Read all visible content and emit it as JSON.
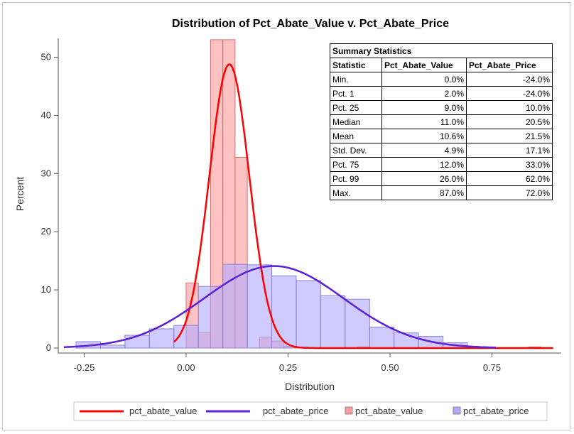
{
  "chart_data": {
    "type": "histogram",
    "title": "Distribution of Pct_Abate_Value v. Pct_Abate_Price",
    "xlabel": "Distribution",
    "ylabel": "Percent",
    "xlim": [
      -0.3,
      0.9
    ],
    "ylim": [
      0,
      54
    ],
    "xticks": [
      -0.25,
      0.0,
      0.25,
      0.5,
      0.75
    ],
    "xtick_labels": [
      "-0.25",
      "0.00",
      "0.25",
      "0.50",
      "0.75"
    ],
    "yticks": [
      0,
      10,
      20,
      30,
      40,
      50
    ],
    "ytick_labels": [
      "0",
      "10",
      "20",
      "30",
      "40",
      "50"
    ],
    "grid": false,
    "histograms": [
      {
        "name": "pct_abate_value",
        "color": "#ff9a9a",
        "edge_color": "#d07070",
        "bin_width": 0.03,
        "bins": [
          {
            "x": 0.0,
            "value": 11.2
          },
          {
            "x": 0.03,
            "value": 2.7
          },
          {
            "x": 0.06,
            "value": 53.0
          },
          {
            "x": 0.09,
            "value": 53.0
          },
          {
            "x": 0.12,
            "value": 32.8
          },
          {
            "x": 0.18,
            "value": 1.9
          },
          {
            "x": 0.21,
            "value": 1.2
          },
          {
            "x": 0.24,
            "value": 0.3
          },
          {
            "x": 0.27,
            "value": 0.2
          },
          {
            "x": 0.42,
            "value": 0.2
          },
          {
            "x": 0.84,
            "value": 0.2
          }
        ]
      },
      {
        "name": "pct_abate_price",
        "color": "#b0a8ff",
        "edge_color": "#8a80d8",
        "bin_width": 0.06,
        "bins": [
          {
            "x": -0.27,
            "value": 1.1
          },
          {
            "x": -0.21,
            "value": 0.5
          },
          {
            "x": -0.15,
            "value": 2.2
          },
          {
            "x": -0.09,
            "value": 3.3
          },
          {
            "x": -0.03,
            "value": 3.9
          },
          {
            "x": 0.03,
            "value": 10.6
          },
          {
            "x": 0.09,
            "value": 14.4
          },
          {
            "x": 0.15,
            "value": 14.3
          },
          {
            "x": 0.21,
            "value": 12.4
          },
          {
            "x": 0.27,
            "value": 11.6
          },
          {
            "x": 0.33,
            "value": 9.0
          },
          {
            "x": 0.39,
            "value": 8.4
          },
          {
            "x": 0.45,
            "value": 3.6
          },
          {
            "x": 0.51,
            "value": 2.6
          },
          {
            "x": 0.57,
            "value": 2.0
          },
          {
            "x": 0.63,
            "value": 0.9
          },
          {
            "x": 0.69,
            "value": 0.2
          }
        ]
      }
    ],
    "density_curves": [
      {
        "name": "pct_abate_value",
        "color": "#ff0000",
        "type": "normal",
        "mu": 0.106,
        "sigma": 0.049,
        "peak": 48.8,
        "x_range": [
          -0.03,
          0.9
        ]
      },
      {
        "name": "pct_abate_price",
        "color": "#5a1edc",
        "type": "normal",
        "mu": 0.215,
        "sigma": 0.171,
        "peak": 14.1,
        "x_range": [
          -0.3,
          0.76
        ]
      }
    ],
    "legend": {
      "placement": "bottom",
      "entries": [
        {
          "label": "pct_abate_value",
          "kind": "line",
          "color": "#ff0000"
        },
        {
          "label": "pct_abate_price",
          "kind": "line",
          "color": "#5a1edc"
        },
        {
          "label": "pct_abate_value",
          "kind": "box",
          "color": "#ff9a9a"
        },
        {
          "label": "pct_abate_price",
          "kind": "box",
          "color": "#b0a8ff"
        }
      ]
    },
    "summary_table": {
      "title": "Summary Statistics",
      "headers": [
        "Statistic",
        "Pct_Abate_Value",
        "Pct_Abate_Price"
      ],
      "rows": [
        [
          "Min.",
          "0.0%",
          "-24.0%"
        ],
        [
          "Pct. 1",
          "2.0%",
          "-24.0%"
        ],
        [
          "Pct. 25",
          "9.0%",
          "10.0%"
        ],
        [
          "Median",
          "11.0%",
          "20.5%"
        ],
        [
          "Mean",
          "10.6%",
          "21.5%"
        ],
        [
          "Std. Dev.",
          "4.9%",
          "17.1%"
        ],
        [
          "Pct. 75",
          "12.0%",
          "33.0%"
        ],
        [
          "Pct. 99",
          "26.0%",
          "62.0%"
        ],
        [
          "Max.",
          "87.0%",
          "72.0%"
        ]
      ]
    }
  }
}
